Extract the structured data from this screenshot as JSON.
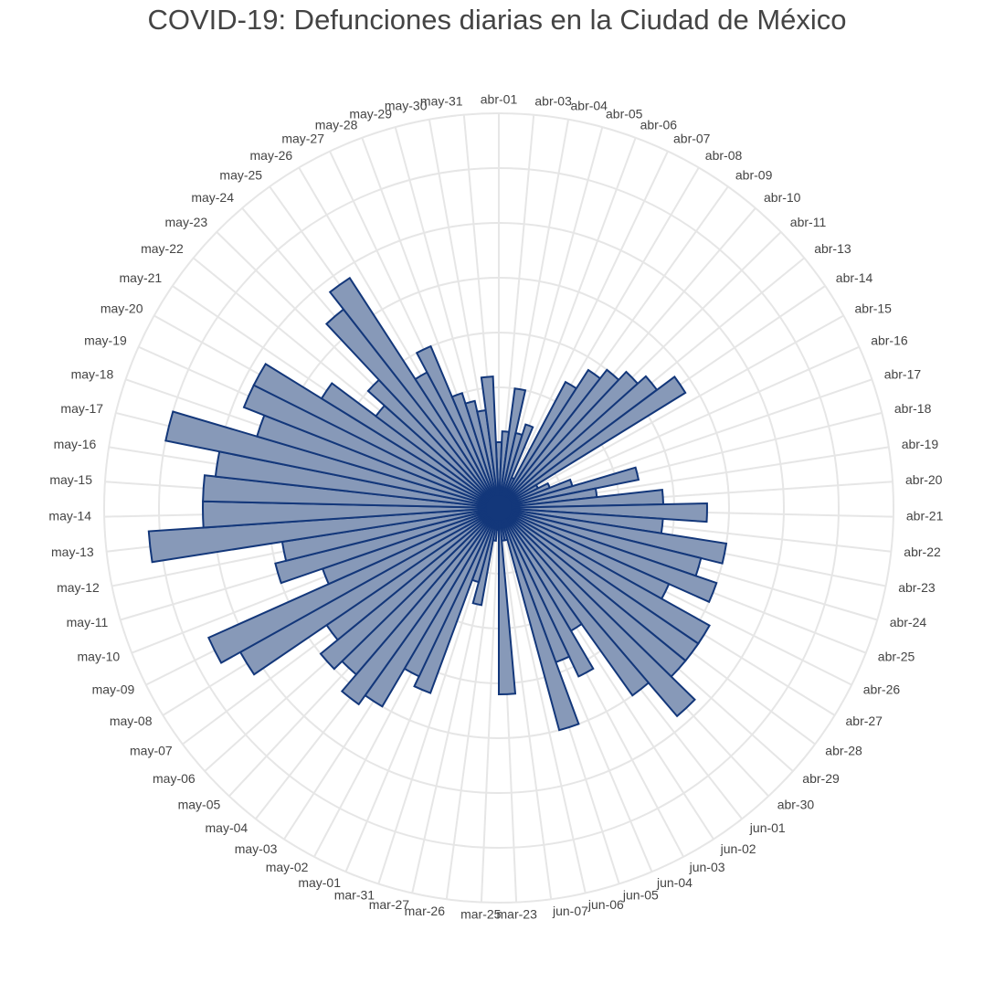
{
  "chart_data": {
    "type": "bar",
    "subtype": "polar",
    "title": "COVID-19: Defunciones diarias en la Ciudad de México",
    "angular_direction": "clockwise",
    "grid": true,
    "legend": "none",
    "bar_color": "#8799b8",
    "bar_stroke": "#13377a",
    "categories": [
      "abr-01",
      "abr-03",
      "abr-04",
      "abr-05",
      "abr-06",
      "abr-07",
      "abr-08",
      "abr-09",
      "abr-10",
      "abr-11",
      "abr-13",
      "abr-14",
      "abr-15",
      "abr-16",
      "abr-17",
      "abr-18",
      "abr-19",
      "abr-20",
      "abr-21",
      "abr-22",
      "abr-23",
      "abr-24",
      "abr-25",
      "abr-26",
      "abr-27",
      "abr-28",
      "abr-29",
      "abr-30",
      "jun-01",
      "jun-02",
      "jun-03",
      "jun-04",
      "jun-05",
      "jun-06",
      "jun-07",
      "mar-23",
      "mar-25",
      "mar-26",
      "mar-27",
      "mar-31",
      "may-01",
      "may-02",
      "may-03",
      "may-04",
      "may-05",
      "may-06",
      "may-07",
      "may-08",
      "may-09",
      "may-10",
      "may-11",
      "may-12",
      "may-13",
      "may-14",
      "may-15",
      "may-16",
      "may-17",
      "may-18",
      "may-19",
      "may-20",
      "may-21",
      "may-22",
      "may-23",
      "may-24",
      "may-25",
      "may-26",
      "may-27",
      "may-28",
      "may-29",
      "may-30",
      "may-31"
    ],
    "values": [
      5,
      6,
      10,
      6,
      7,
      2,
      12,
      14,
      15,
      16,
      17,
      19,
      3,
      4,
      6,
      12,
      8,
      14,
      18,
      14,
      20,
      18,
      20,
      16,
      21,
      21,
      21,
      24,
      20,
      12,
      16,
      14,
      20,
      2,
      2,
      16,
      1,
      2,
      8,
      6,
      17,
      16,
      20,
      21,
      19,
      20,
      18,
      26,
      28,
      16,
      20,
      19,
      31,
      26,
      26,
      25,
      30,
      22,
      24,
      24,
      18,
      13,
      15,
      22,
      24,
      13,
      15,
      10,
      9,
      8,
      11
    ]
  }
}
